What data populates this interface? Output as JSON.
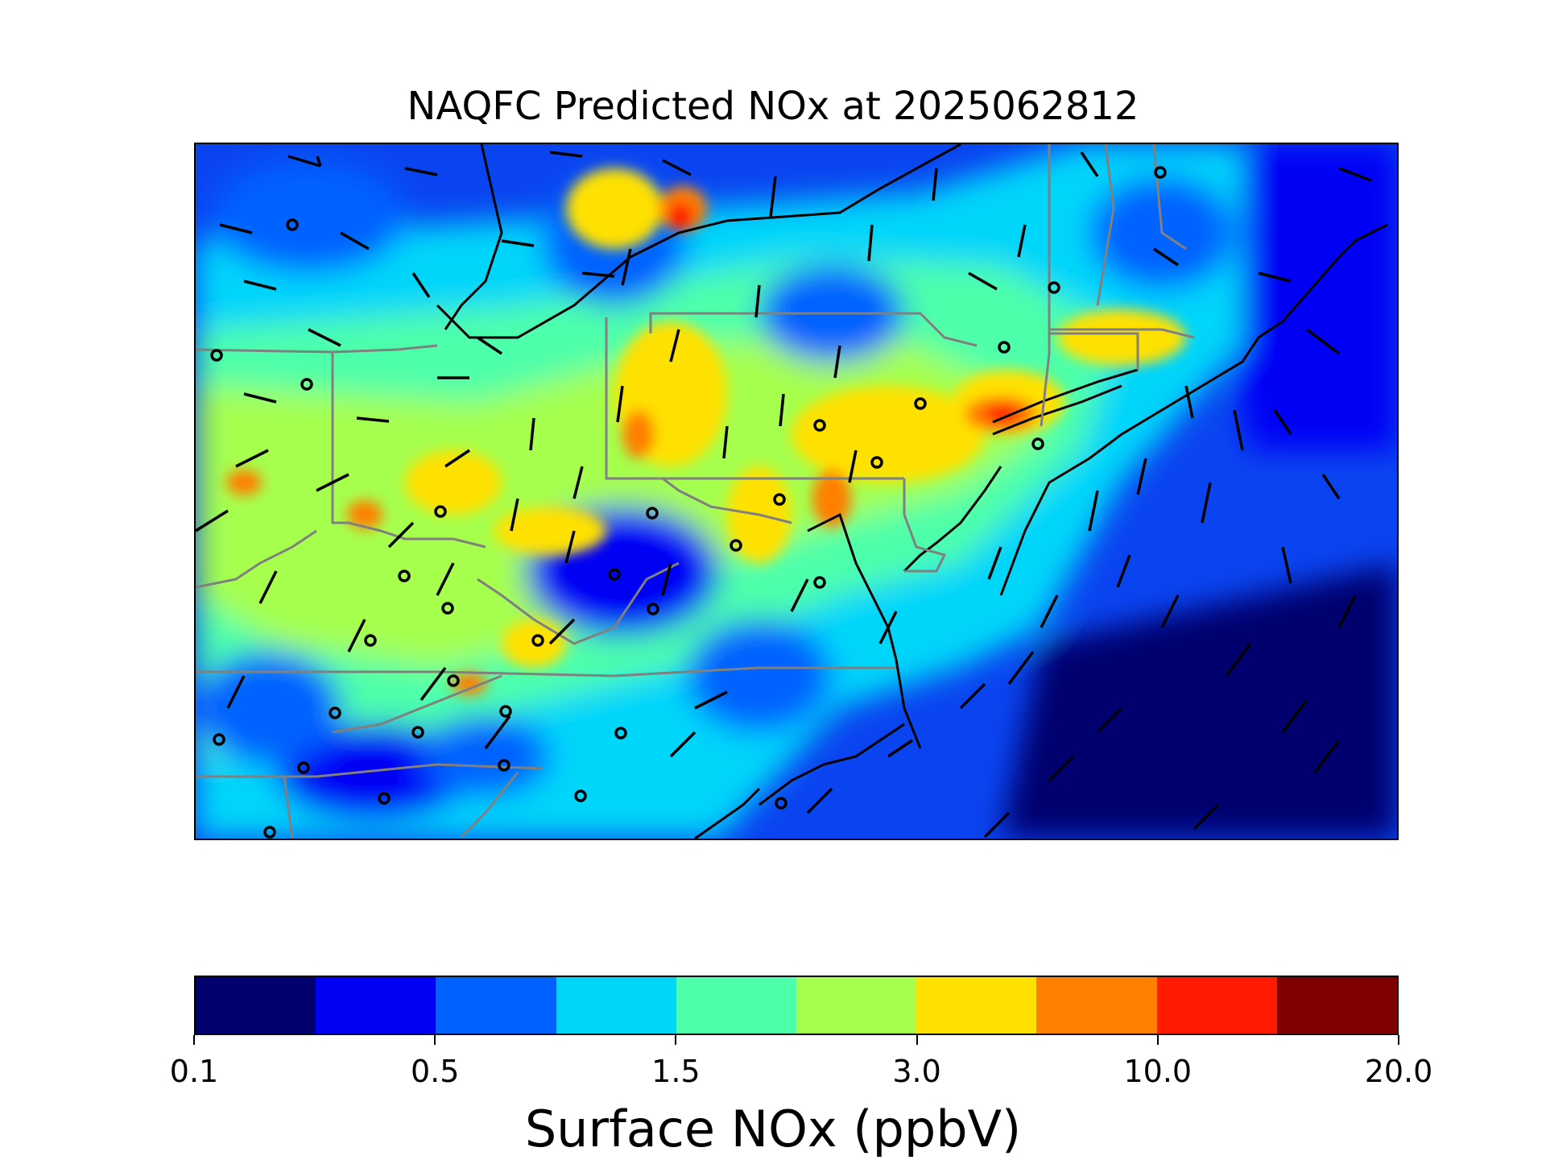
{
  "figure": {
    "title": "NAQFC Predicted NOx at 2025062812"
  },
  "colorbar": {
    "label": "Surface NOx (ppbV)",
    "colors": [
      "#00006e",
      "#0000f5",
      "#0062ff",
      "#00d5fa",
      "#4dffaa",
      "#a6ff4d",
      "#ffe100",
      "#ff7f00",
      "#ff1a00",
      "#7f0000"
    ],
    "ticks": [
      "0.1",
      "0.5",
      "1.5",
      "3.0",
      "10.0",
      "20.0"
    ],
    "tick_positions": [
      0,
      2,
      4,
      6,
      8,
      10
    ]
  },
  "map": {
    "layer": "surface NOx concentration field with wind barbs, station markers, coastlines and state borders"
  }
}
